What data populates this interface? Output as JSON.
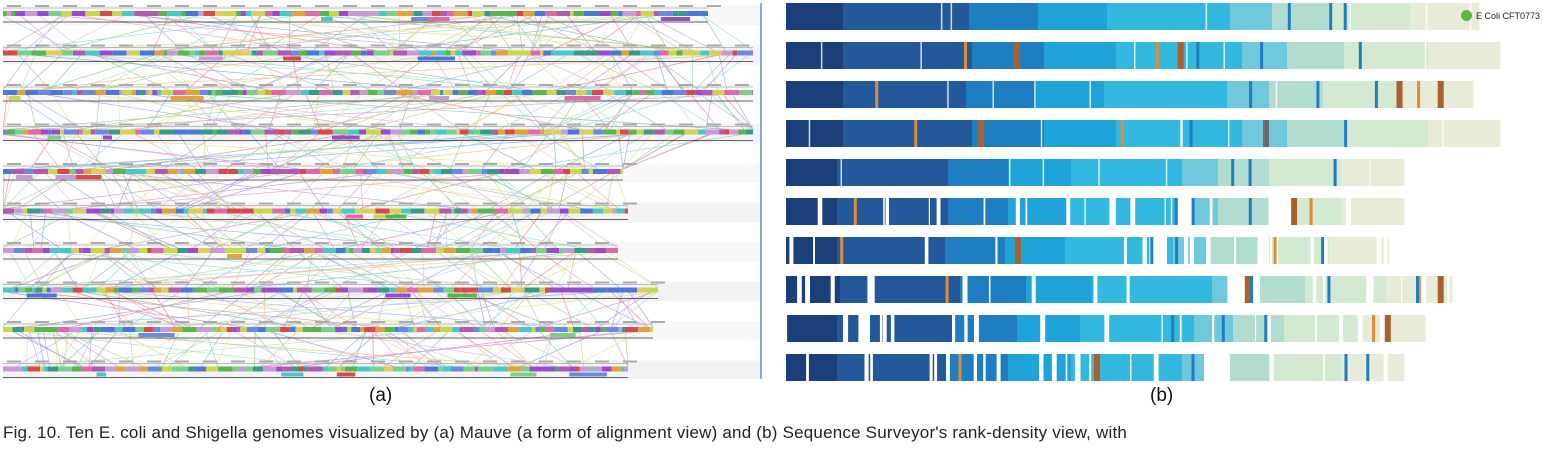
{
  "figure": {
    "panel_a_label": "(a)",
    "panel_b_label": "(b)",
    "caption": "Fig. 10. Ten E. coli and Shigella genomes visualized by (a) Mauve (a form of alignment view) and (b) Sequence Surveyor's rank-density view, with"
  },
  "panel_a": {
    "genome_count": 10
  },
  "panel_b": {
    "legend_label": "E Coli CFT0773",
    "legend_color": "#5cb840",
    "palette": {
      "darkest_blue": "#1b3f78",
      "dark_blue": "#23589a",
      "mid_blue": "#1f7dc2",
      "blue": "#1fa3d8",
      "cyan": "#33b8e0",
      "light_cyan": "#6fc8dc",
      "pale_teal": "#b3dcd0",
      "pale_green": "#d4e9d2",
      "cream": "#e8ebd8",
      "orange": "#e08a3c",
      "brown": "#a8602c"
    },
    "tracks": [
      {
        "length": 0.99,
        "gaps": [],
        "accents": []
      },
      {
        "length": 1.05,
        "gaps": [],
        "accents": [
          0.25,
          0.32,
          0.52,
          0.55
        ]
      },
      {
        "length": 0.98,
        "gaps": [],
        "accents": [
          0.13,
          0.89,
          0.92,
          0.95
        ]
      },
      {
        "length": 1.05,
        "gaps": [],
        "accents": [
          0.18,
          0.27,
          0.47,
          0.67
        ]
      },
      {
        "length": 0.88,
        "gaps": [],
        "accents": []
      },
      {
        "length": 0.88,
        "gaps": [
          [
            0.63,
            0.66
          ],
          [
            0.78,
            0.82
          ]
        ],
        "accents": [
          0.11,
          0.82,
          0.85
        ]
      },
      {
        "length": 0.86,
        "gaps": [
          [
            0.6,
            0.63
          ],
          [
            0.78,
            0.8
          ]
        ],
        "accents": [
          0.09,
          0.38,
          0.81
        ]
      },
      {
        "length": 0.95,
        "gaps": [
          [
            0.12,
            0.13
          ],
          [
            0.66,
            0.71
          ]
        ],
        "accents": [
          0.24,
          0.69,
          0.95,
          0.98
        ]
      },
      {
        "length": 0.91,
        "gaps": [
          [
            0.11,
            0.13
          ]
        ],
        "accents": [
          0.92,
          0.94
        ]
      },
      {
        "length": 0.88,
        "gaps": [
          [
            0.68,
            0.72
          ]
        ],
        "accents": [
          0.28,
          0.5
        ]
      }
    ]
  }
}
